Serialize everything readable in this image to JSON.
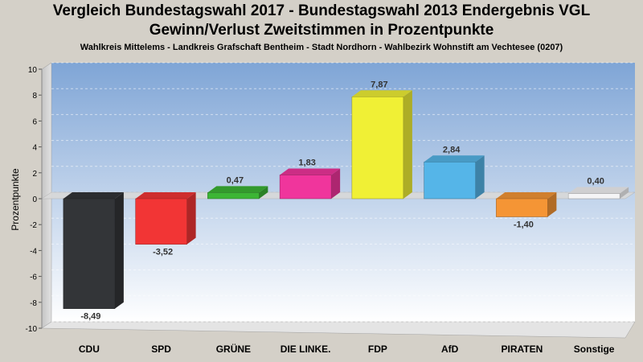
{
  "chart_data": {
    "type": "bar",
    "title": "Vergleich Bundestagswahl 2017 - Bundestagswahl 2013 Endergebnis VGL",
    "title2": "Gewinn/Verlust Zweitstimmen in Prozentpunkte",
    "subtitle": "Wahlkreis Mittelems - Landkreis Grafschaft Bentheim - Stadt Nordhorn - Wahlbezirk Wohnstift am Vechtesee (0207)",
    "ylabel": "Prozentpunkte",
    "xlabel": "",
    "ylim": [
      -10,
      10
    ],
    "yticks": [
      "10",
      "8",
      "6",
      "4",
      "2",
      "0",
      "-2",
      "-4",
      "-6",
      "-8",
      "-10"
    ],
    "categories": [
      "CDU",
      "SPD",
      "GRÜNE",
      "DIE LINKE.",
      "FDP",
      "AfD",
      "PIRATEN",
      "Sonstige"
    ],
    "values": [
      -8.49,
      -3.52,
      0.47,
      1.83,
      7.87,
      2.84,
      -1.4,
      0.4
    ],
    "value_labels": [
      "-8,49",
      "-3,52",
      "0,47",
      "1,83",
      "7,87",
      "2,84",
      "-1,40",
      "0,40"
    ],
    "colors": [
      "#333538",
      "#f23535",
      "#3cb535",
      "#f0359c",
      "#f0f035",
      "#55b5e8",
      "#f59535",
      "#f4f4f6"
    ],
    "grid": true,
    "legend": "none"
  }
}
